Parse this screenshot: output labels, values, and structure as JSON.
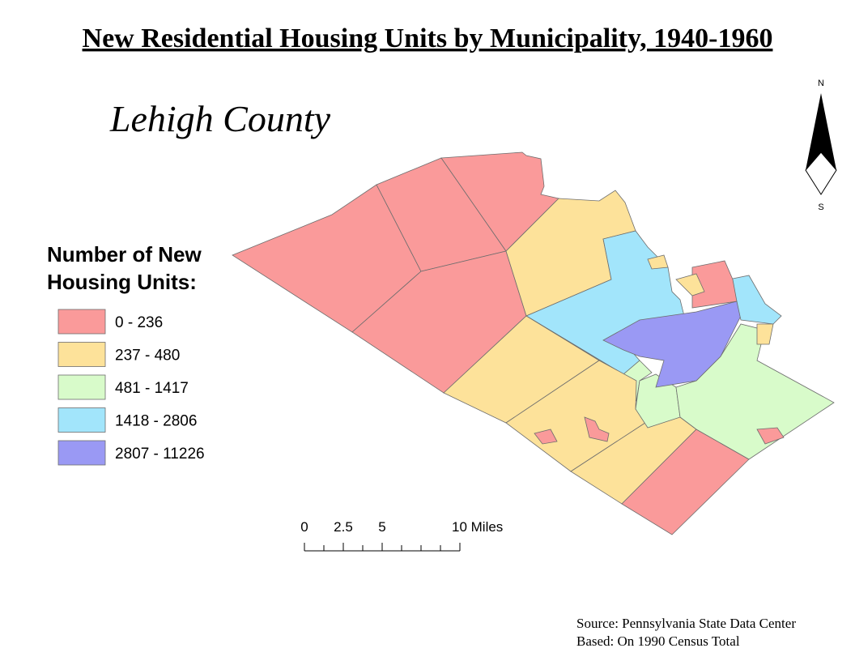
{
  "title": "New Residential Housing Units by Municipality, 1940-1960",
  "subtitle": "Lehigh County",
  "legend": {
    "title_lines": [
      "Number of New",
      "Housing Units:"
    ],
    "items": [
      {
        "label": "0 - 236",
        "color": "#fa9a9a"
      },
      {
        "label": "237 - 480",
        "color": "#fde29a"
      },
      {
        "label": "481 - 1417",
        "color": "#d8fbca"
      },
      {
        "label": "1418 - 2806",
        "color": "#a2e5fb"
      },
      {
        "label": "2807 - 11226",
        "color": "#9a99f4"
      }
    ]
  },
  "north_arrow": {
    "north": "N",
    "south": "S"
  },
  "scale_bar": {
    "labels": [
      "0",
      "2.5",
      "5",
      "10 Miles"
    ]
  },
  "source": [
    "Source: Pennsylvania State Data Center",
    "Based: On 1990 Census Total"
  ]
}
